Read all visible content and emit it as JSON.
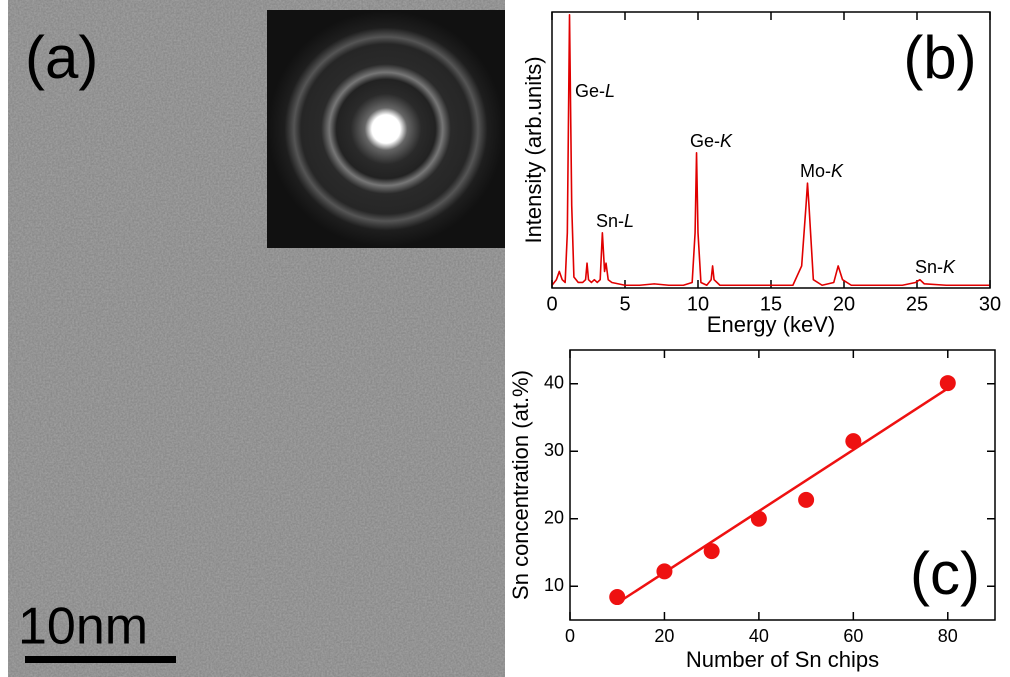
{
  "image_panel": {
    "label": "(a)",
    "scale_bar": "10nm"
  },
  "chart_data": [
    {
      "type": "line",
      "label": "(b)",
      "x_label": "Energy (keV)",
      "y_label": "Intensity (arb.units)",
      "xlim": [
        0,
        30
      ],
      "xticks": [
        0,
        5,
        10,
        15,
        20,
        25,
        30
      ],
      "ylim": [
        0,
        100
      ],
      "series": [
        {
          "color": "#e00000",
          "x": [
            0,
            0.3,
            0.5,
            0.7,
            0.9,
            1.05,
            1.2,
            1.35,
            1.5,
            1.8,
            2.1,
            2.3,
            2.4,
            2.5,
            2.7,
            2.9,
            3.1,
            3.3,
            3.45,
            3.6,
            3.7,
            3.85,
            4.1,
            5,
            6,
            7,
            8,
            9,
            9.6,
            9.8,
            9.9,
            10.0,
            10.2,
            10.6,
            10.9,
            11.0,
            11.1,
            11.5,
            12.5,
            14,
            15.5,
            16.5,
            17.1,
            17.4,
            17.5,
            17.6,
            17.9,
            18.5,
            19.3,
            19.6,
            19.9,
            20.5,
            22,
            24,
            24.9,
            25.2,
            25.5,
            27,
            30
          ],
          "values": [
            1,
            3,
            6,
            3,
            2,
            20,
            99,
            30,
            4,
            2,
            2,
            3,
            9,
            3,
            2,
            3,
            2,
            3,
            20,
            6,
            9,
            3,
            2,
            1,
            1,
            1.5,
            1,
            1,
            2,
            20,
            49,
            20,
            2,
            1,
            3,
            8,
            3,
            1,
            1,
            1,
            1,
            1,
            8,
            30,
            38,
            30,
            3,
            1,
            2,
            8,
            3,
            1,
            1,
            1,
            2,
            3,
            1.5,
            1,
            1
          ]
        }
      ],
      "annotations": [
        "Ge-L",
        "Sn-L",
        "Ge-K",
        "Mo-K",
        "Sn-K"
      ]
    },
    {
      "type": "scatter",
      "label": "(c)",
      "x_label": "Number of Sn chips",
      "y_label": "Sn concentration (at.%)",
      "xlim": [
        0,
        90
      ],
      "xticks": [
        0,
        20,
        40,
        60,
        80
      ],
      "ylim": [
        5,
        45
      ],
      "yticks": [
        10,
        20,
        30,
        40
      ],
      "series": [
        {
          "color": "#ee1111",
          "x": [
            10,
            20,
            30,
            40,
            50,
            60,
            80
          ],
          "values": [
            8.4,
            12.2,
            15.2,
            20,
            22.8,
            31.5,
            40.1
          ]
        }
      ],
      "fit": {
        "color": "#ee1111",
        "x": [
          10,
          80
        ],
        "values": [
          7.5,
          39.3
        ]
      }
    }
  ]
}
